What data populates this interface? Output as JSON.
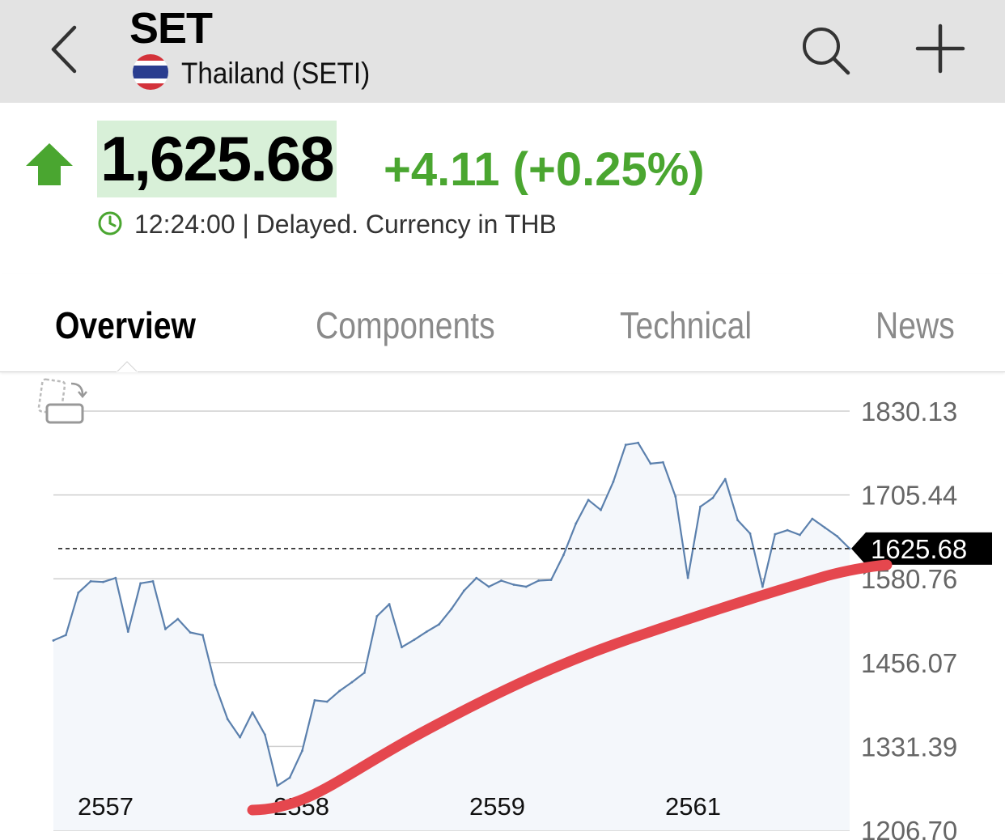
{
  "header": {
    "title": "SET",
    "subtitle": "Thailand (SETI)",
    "icons": {
      "back": "chevron-left-icon",
      "search": "search-icon",
      "add": "plus-icon",
      "flag": "thailand-flag-icon"
    }
  },
  "quote": {
    "price": "1,625.68",
    "change": "+4.11 (+0.25%)",
    "time": "12:24:00",
    "status": "| Delayed. Currency in THB",
    "direction": "up",
    "colors": {
      "up": "#4aa630",
      "price_highlight": "#d8f0d8"
    }
  },
  "tabs": [
    {
      "label": "Overview",
      "active": true
    },
    {
      "label": "Components",
      "active": false
    },
    {
      "label": "Technical",
      "active": false
    },
    {
      "label": "News",
      "active": false
    }
  ],
  "chart_data": {
    "type": "line",
    "ylim": [
      1206.7,
      1830.13
    ],
    "y_ticks": [
      "1830.13",
      "1705.44",
      "1580.76",
      "1456.07",
      "1331.39",
      "1206.70"
    ],
    "x_ticks": [
      "2557",
      "2558",
      "2559",
      "2561"
    ],
    "current_value": 1625.68,
    "current_label": "1625.68",
    "line_color": "#5b80ad",
    "series": [
      {
        "values": [
          1489,
          1497,
          1560,
          1577,
          1576,
          1582,
          1502,
          1574,
          1577,
          1506,
          1521,
          1501,
          1497,
          1423,
          1372,
          1345,
          1382,
          1349,
          1273,
          1285,
          1325,
          1400,
          1398,
          1414,
          1427,
          1441,
          1525,
          1543,
          1479,
          1490,
          1502,
          1513,
          1536,
          1563,
          1582,
          1569,
          1578,
          1572,
          1569,
          1578,
          1579,
          1616,
          1663,
          1698,
          1683,
          1725,
          1780,
          1783,
          1752,
          1754,
          1703,
          1582,
          1688,
          1701,
          1729,
          1668,
          1648,
          1569,
          1647,
          1653,
          1646,
          1670,
          1657,
          1644,
          1625.68
        ]
      }
    ]
  }
}
